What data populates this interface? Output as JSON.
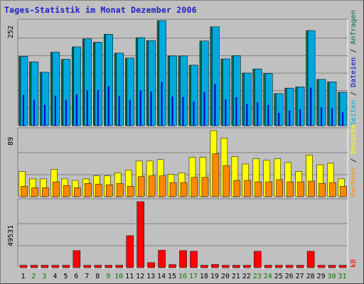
{
  "title": "Tages-Statistik im Monat Dezember 2006",
  "chart_data": [
    {
      "type": "bar",
      "categories": [
        "1",
        "2",
        "3",
        "4",
        "5",
        "6",
        "7",
        "8",
        "9",
        "10",
        "11",
        "12",
        "13",
        "14",
        "15",
        "16",
        "17",
        "18",
        "19",
        "20",
        "21",
        "22",
        "23",
        "24",
        "25",
        "26",
        "27",
        "28",
        "29",
        "30",
        "31"
      ],
      "weekend_days": [
        "2",
        "3",
        "9",
        "10",
        "16",
        "17",
        "23",
        "24",
        "30",
        "31"
      ],
      "ytick_label": "252",
      "ylim": [
        0,
        252
      ],
      "series": [
        {
          "name": "Anfragen",
          "color": "#006c50",
          "values": [
            166,
            153,
            128,
            176,
            159,
            189,
            208,
            200,
            219,
            174,
            162,
            211,
            204,
            252,
            167,
            167,
            145,
            203,
            237,
            160,
            168,
            126,
            136,
            125,
            77,
            90,
            93,
            228,
            111,
            105,
            80
          ]
        },
        {
          "name": "Dateien",
          "color": "#0000c8",
          "values": [
            74,
            62,
            50,
            72,
            62,
            75,
            85,
            86,
            95,
            71,
            62,
            85,
            82,
            105,
            70,
            69,
            58,
            80,
            100,
            63,
            68,
            52,
            56,
            50,
            31,
            36,
            40,
            91,
            44,
            42,
            32
          ]
        },
        {
          "name": "Seiten",
          "color": "#00a8e0",
          "values": [
            166,
            153,
            128,
            176,
            159,
            189,
            208,
            200,
            219,
            174,
            162,
            211,
            204,
            252,
            167,
            167,
            145,
            203,
            237,
            160,
            168,
            126,
            136,
            125,
            77,
            90,
            93,
            228,
            111,
            105,
            80
          ]
        }
      ],
      "side_labels": [
        "Anfragen",
        "Dateien",
        "Seiten"
      ]
    },
    {
      "type": "bar",
      "categories": [
        "1",
        "2",
        "3",
        "4",
        "5",
        "6",
        "7",
        "8",
        "9",
        "10",
        "11",
        "12",
        "13",
        "14",
        "15",
        "16",
        "17",
        "18",
        "19",
        "20",
        "21",
        "22",
        "23",
        "24",
        "25",
        "26",
        "27",
        "28",
        "29",
        "30",
        "31"
      ],
      "ytick_label": "89",
      "ylim": [
        0,
        89
      ],
      "series": [
        {
          "name": "Besuche",
          "color": "#ffff00",
          "values": [
            34,
            24,
            24,
            37,
            24,
            22,
            24,
            28,
            28,
            32,
            36,
            48,
            48,
            50,
            30,
            32,
            53,
            53,
            89,
            79,
            54,
            44,
            51,
            49,
            51,
            46,
            34,
            56,
            43,
            45,
            24
          ]
        },
        {
          "name": "Rechner",
          "color": "#ff8800",
          "values": [
            14,
            12,
            12,
            20,
            15,
            12,
            18,
            17,
            16,
            18,
            14,
            27,
            28,
            28,
            19,
            19,
            26,
            26,
            58,
            42,
            22,
            22,
            20,
            20,
            23,
            20,
            20,
            21,
            18,
            19,
            14
          ]
        }
      ],
      "side_labels": [
        "Rechner",
        "Besuche"
      ]
    },
    {
      "type": "bar",
      "categories": [
        "1",
        "2",
        "3",
        "4",
        "5",
        "6",
        "7",
        "8",
        "9",
        "10",
        "11",
        "12",
        "13",
        "14",
        "15",
        "16",
        "17",
        "18",
        "19",
        "20",
        "21",
        "22",
        "23",
        "24",
        "25",
        "26",
        "27",
        "28",
        "29",
        "30",
        "31"
      ],
      "ytick_label": "49531",
      "ylim": [
        0,
        49531
      ],
      "series": [
        {
          "name": "kB",
          "color": "#ff0000",
          "values": [
            1800,
            1800,
            1800,
            1800,
            1800,
            12800,
            1800,
            1800,
            1800,
            1800,
            24000,
            49531,
            3800,
            13100,
            2300,
            12800,
            12300,
            1800,
            2400,
            1800,
            1800,
            1800,
            12300,
            1800,
            1800,
            1800,
            1800,
            12300,
            1800,
            1800,
            1800
          ]
        }
      ],
      "side_labels": [
        "kB"
      ]
    }
  ],
  "colors": {
    "background": "#c0c0c0",
    "plot_background": "#c0c0c0",
    "grid": "#808080",
    "title": "#1d1dc8",
    "weekday_label": "#000000",
    "weekend_label": "#008000",
    "sep": "#000000"
  },
  "legend_separator": "/"
}
